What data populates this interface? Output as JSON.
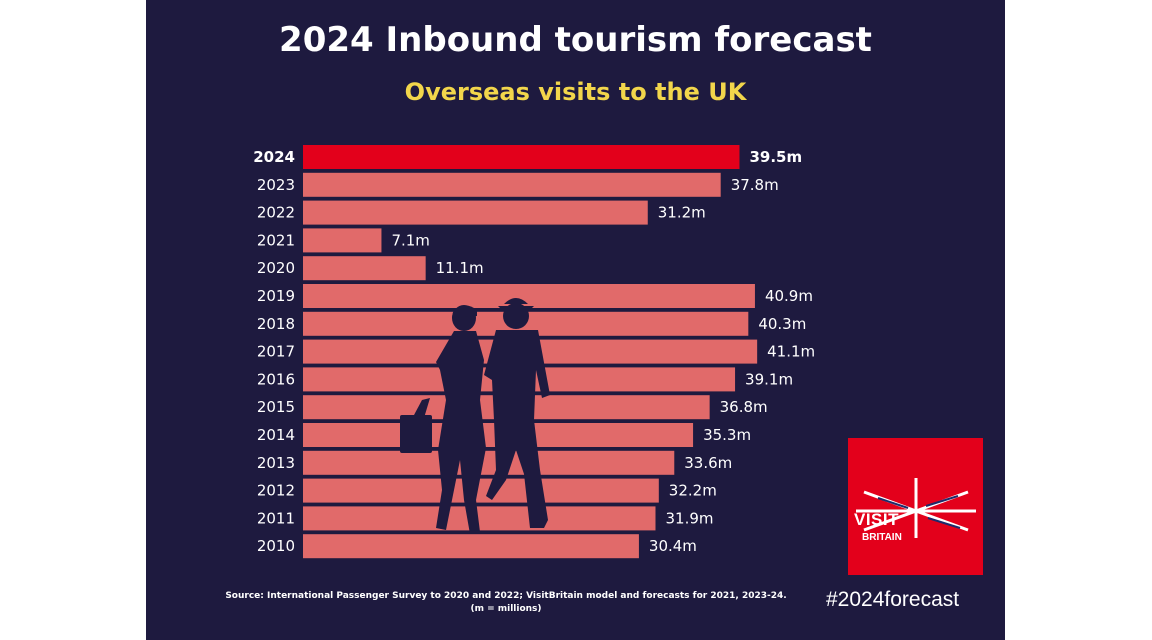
{
  "title": "2024 Inbound tourism forecast",
  "subtitle": "Overseas visits to the UK",
  "source_line1": "Source: International Passenger Survey to 2020 and 2022; VisitBritain model and forecasts for 2021, 2023-24.",
  "source_line2": "(m = millions)",
  "hashtag": "#2024forecast",
  "logo": {
    "line1": "VISIT",
    "line2": "BRITAIN"
  },
  "colors": {
    "background": "#1e1a3f",
    "bar": "#e16a6a",
    "highlight_bar": "#e3001b",
    "highlight_text": "#f2d64b",
    "subtitle": "#f2d64b"
  },
  "chart_data": {
    "type": "bar",
    "orientation": "horizontal",
    "title": "2024 Inbound tourism forecast",
    "subtitle": "Overseas visits to the UK",
    "categories": [
      "2024",
      "2023",
      "2022",
      "2021",
      "2020",
      "2019",
      "2018",
      "2017",
      "2016",
      "2015",
      "2014",
      "2013",
      "2012",
      "2011",
      "2010"
    ],
    "values": [
      39.5,
      37.8,
      31.2,
      7.1,
      11.1,
      40.9,
      40.3,
      41.1,
      39.1,
      36.8,
      35.3,
      33.6,
      32.2,
      31.9,
      30.4
    ],
    "value_labels": [
      "39.5m",
      "37.8m",
      "31.2m",
      "7.1m",
      "11.1m",
      "40.9m",
      "40.3m",
      "41.1m",
      "39.1m",
      "36.8m",
      "35.3m",
      "33.6m",
      "32.2m",
      "31.9m",
      "30.4m"
    ],
    "highlight": "2024",
    "unit": "m = millions"
  }
}
